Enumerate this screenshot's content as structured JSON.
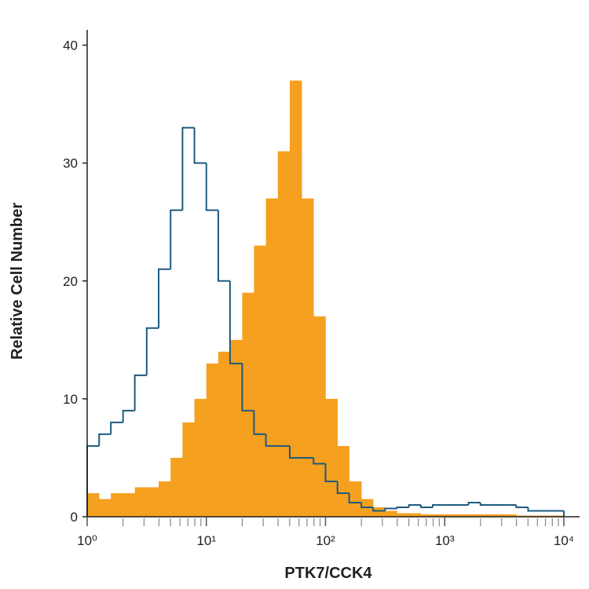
{
  "chart_data": {
    "type": "histogram",
    "x_label": "PTK7/CCK4",
    "y_label": "Relative Cell Number",
    "xscale": "log",
    "minor_ticks": true,
    "xlim": [
      1,
      10000
    ],
    "xticks": [
      {
        "value": 1,
        "label": "10⁰"
      },
      {
        "value": 10,
        "label": "10¹"
      },
      {
        "value": 100,
        "label": "10²"
      },
      {
        "value": 1000,
        "label": "10³"
      },
      {
        "value": 10000,
        "label": "10⁴"
      }
    ],
    "ylim": [
      0,
      41.3
    ],
    "yticks": [
      0,
      10,
      20,
      30,
      40
    ],
    "bins": [
      1,
      1.26,
      1.58,
      2,
      2.51,
      3.16,
      3.98,
      5.01,
      6.31,
      7.94,
      10,
      12.6,
      15.8,
      20,
      25.1,
      31.6,
      39.8,
      50.1,
      63.1,
      79.4,
      100,
      126,
      158,
      200,
      251,
      316,
      398,
      501,
      631,
      794,
      1000,
      1259,
      1585,
      1995,
      2512,
      3162,
      3981,
      5012,
      6310,
      7943,
      10000
    ],
    "series": [
      {
        "color": "#f5a01e",
        "fill": true,
        "values": [
          2,
          1.5,
          2,
          2,
          2.5,
          2.5,
          3,
          5,
          8,
          10,
          13,
          14,
          15,
          19,
          23,
          27,
          31,
          37,
          27,
          17,
          10,
          6,
          3,
          1.5,
          0.8,
          0.5,
          0.3,
          0.3,
          0.2,
          0.2,
          0.2,
          0.2,
          0.2,
          0.2,
          0.2,
          0.2,
          0.1,
          0.1,
          0.1,
          0.1
        ]
      },
      {
        "color": "#1d5a80",
        "fill": false,
        "values": [
          6,
          7,
          8,
          9,
          12,
          16,
          21,
          26,
          33,
          30,
          26,
          20,
          13,
          9,
          7,
          6,
          6,
          5,
          5,
          4.5,
          3,
          2,
          1.2,
          0.8,
          0.5,
          0.7,
          0.8,
          1,
          0.8,
          1,
          1,
          1,
          1.2,
          1,
          1,
          1,
          0.8,
          0.5,
          0.5,
          0.5
        ]
      }
    ]
  }
}
